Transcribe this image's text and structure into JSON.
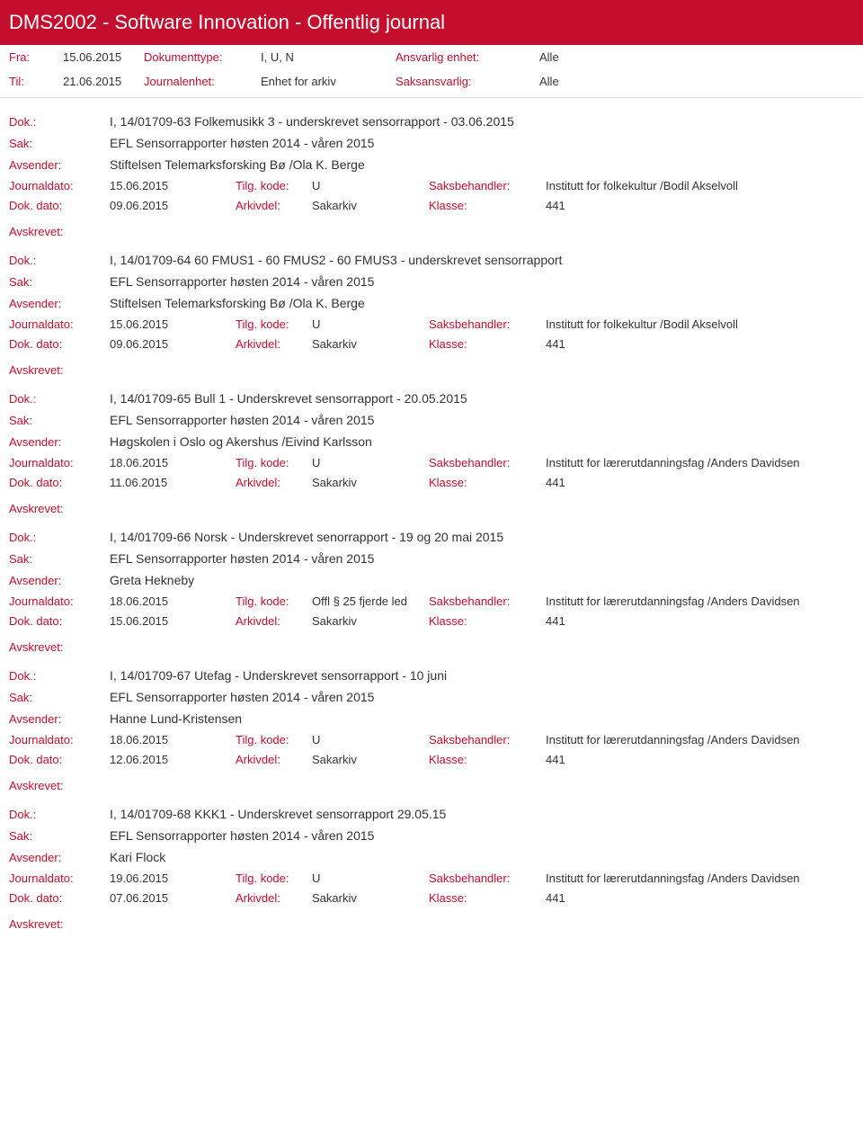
{
  "header": {
    "title": "DMS2002 - Software Innovation - Offentlig journal"
  },
  "filters": {
    "row1": {
      "l1": "Fra:",
      "v1": "15.06.2015",
      "l2": "Dokumenttype:",
      "v2": "I, U, N",
      "l3": "Ansvarlig enhet:",
      "v3": "Alle"
    },
    "row2": {
      "l1": "Til:",
      "v1": "21.06.2015",
      "l2": "Journalenhet:",
      "v2": "Enhet for arkiv",
      "l3": "Saksansvarlig:",
      "v3": "Alle"
    }
  },
  "labels": {
    "dok": "Dok.:",
    "sak": "Sak:",
    "avsender": "Avsender:",
    "journaldato": "Journaldato:",
    "dokdato": "Dok. dato:",
    "tilgkode": "Tilg. kode:",
    "arkivdel": "Arkivdel:",
    "saksbehandler": "Saksbehandler:",
    "klasse": "Klasse:",
    "avskrevet": "Avskrevet:"
  },
  "entries": [
    {
      "dok": "I, 14/01709-63 Folkemusikk 3 - underskrevet sensorrapport - 03.06.2015",
      "sak": "EFL Sensorrapporter høsten 2014 - våren 2015",
      "avsender": "Stiftelsen Telemarksforsking Bø /Ola K. Berge",
      "journaldato": "15.06.2015",
      "tilgkode": "U",
      "saksbehandler": "Institutt for folkekultur /Bodil Akselvoll",
      "dokdato": "09.06.2015",
      "arkivdel": "Sakarkiv",
      "klasse": "441"
    },
    {
      "dok": "I, 14/01709-64 60 FMUS1 - 60 FMUS2 - 60 FMUS3 - underskrevet sensorrapport",
      "sak": "EFL Sensorrapporter høsten 2014 - våren 2015",
      "avsender": "Stiftelsen Telemarksforsking Bø /Ola K. Berge",
      "journaldato": "15.06.2015",
      "tilgkode": "U",
      "saksbehandler": "Institutt for folkekultur /Bodil Akselvoll",
      "dokdato": "09.06.2015",
      "arkivdel": "Sakarkiv",
      "klasse": "441"
    },
    {
      "dok": "I, 14/01709-65 Bull 1 - Underskrevet sensorrapport - 20.05.2015",
      "sak": "EFL Sensorrapporter høsten 2014 - våren 2015",
      "avsender": "Høgskolen i Oslo og Akershus /Eivind Karlsson",
      "journaldato": "18.06.2015",
      "tilgkode": "U",
      "saksbehandler": "Institutt for lærerutdanningsfag /Anders Davidsen",
      "dokdato": "11.06.2015",
      "arkivdel": "Sakarkiv",
      "klasse": "441"
    },
    {
      "dok": "I, 14/01709-66 Norsk - Underskrevet senorrapport - 19 og 20 mai 2015",
      "sak": "EFL Sensorrapporter høsten 2014 - våren 2015",
      "avsender": "Greta Hekneby",
      "journaldato": "18.06.2015",
      "tilgkode": "Offl § 25 fjerde led",
      "saksbehandler": "Institutt for lærerutdanningsfag /Anders Davidsen",
      "dokdato": "15.06.2015",
      "arkivdel": "Sakarkiv",
      "klasse": "441"
    },
    {
      "dok": "I, 14/01709-67 Utefag - Underskrevet sensorrapport - 10 juni",
      "sak": "EFL Sensorrapporter høsten 2014 - våren 2015",
      "avsender": "Hanne Lund-Kristensen",
      "journaldato": "18.06.2015",
      "tilgkode": "U",
      "saksbehandler": "Institutt for lærerutdanningsfag /Anders Davidsen",
      "dokdato": "12.06.2015",
      "arkivdel": "Sakarkiv",
      "klasse": "441"
    },
    {
      "dok": "I, 14/01709-68 KKK1 - Underskrevet sensorrapport 29.05.15",
      "sak": "EFL Sensorrapporter høsten 2014 - våren 2015",
      "avsender": "Kari Flock",
      "journaldato": "19.06.2015",
      "tilgkode": "U",
      "saksbehandler": "Institutt for lærerutdanningsfag /Anders Davidsen",
      "dokdato": "07.06.2015",
      "arkivdel": "Sakarkiv",
      "klasse": "441"
    }
  ]
}
